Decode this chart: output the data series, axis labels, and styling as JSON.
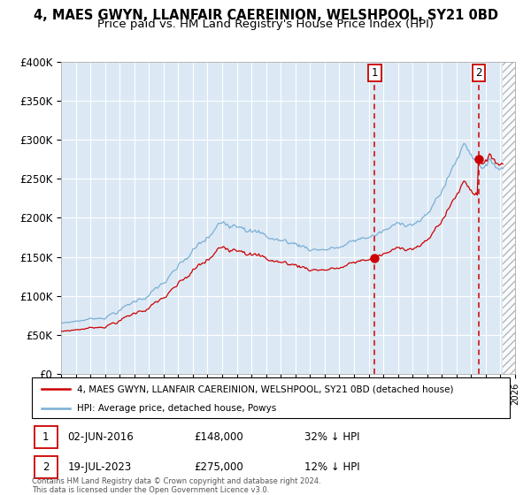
{
  "title_line1": "4, MAES GWYN, LLANFAIR CAEREINION, WELSHPOOL, SY21 0BD",
  "title_line2": "Price paid vs. HM Land Registry's House Price Index (HPI)",
  "legend_label_red": "4, MAES GWYN, LLANFAIR CAEREINION, WELSHPOOL, SY21 0BD (detached house)",
  "legend_label_blue": "HPI: Average price, detached house, Powys",
  "marker1_date": "02-JUN-2016",
  "marker1_price": 148000,
  "marker1_label": "32% ↓ HPI",
  "marker1_year": 2016.42,
  "marker2_date": "19-JUL-2023",
  "marker2_price": 275000,
  "marker2_label": "12% ↓ HPI",
  "marker2_year": 2023.54,
  "xmin": 1995,
  "xmax": 2026,
  "ymin": 0,
  "ymax": 400000,
  "yticks": [
    0,
    50000,
    100000,
    150000,
    200000,
    250000,
    300000,
    350000,
    400000
  ],
  "ytick_labels": [
    "£0",
    "£50K",
    "£100K",
    "£150K",
    "£200K",
    "£250K",
    "£300K",
    "£350K",
    "£400K"
  ],
  "plot_bg_color": "#dce9f5",
  "red_color": "#cc0000",
  "blue_color": "#7aafd4",
  "grid_color": "#ffffff",
  "hatch_start": 2025.17,
  "footer_text": "Contains HM Land Registry data © Crown copyright and database right 2024.\nThis data is licensed under the Open Government Licence v3.0."
}
